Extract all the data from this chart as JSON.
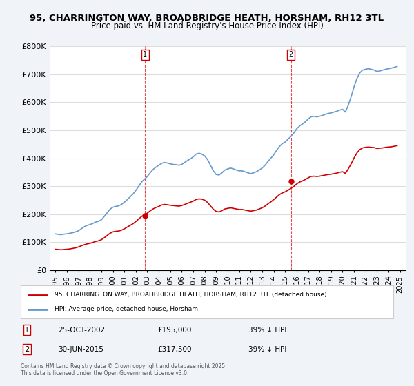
{
  "title": "95, CHARRINGTON WAY, BROADBRIDGE HEATH, HORSHAM, RH12 3TL",
  "subtitle": "Price paid vs. HM Land Registry's House Price Index (HPI)",
  "ylabel": "",
  "xlabel": "",
  "ylim": [
    0,
    800000
  ],
  "yticks": [
    0,
    100000,
    200000,
    300000,
    400000,
    500000,
    600000,
    700000,
    800000
  ],
  "ytick_labels": [
    "£0",
    "£100K",
    "£200K",
    "£300K",
    "£400K",
    "£500K",
    "£600K",
    "£700K",
    "£800K"
  ],
  "xlim": [
    1994.5,
    2025.5
  ],
  "background_color": "#f0f4f8",
  "plot_bg_color": "#ffffff",
  "grid_color": "#dddddd",
  "red_color": "#cc0000",
  "blue_color": "#6699cc",
  "sale1_x": 2002.81,
  "sale1_y": 195000,
  "sale2_x": 2015.5,
  "sale2_y": 317500,
  "legend_label_red": "95, CHARRINGTON WAY, BROADBRIDGE HEATH, HORSHAM, RH12 3TL (detached house)",
  "legend_label_blue": "HPI: Average price, detached house, Horsham",
  "annotation_rows": [
    {
      "num": "1",
      "date": "25-OCT-2002",
      "price": "£195,000",
      "hpi": "39% ↓ HPI"
    },
    {
      "num": "2",
      "date": "30-JUN-2015",
      "price": "£317,500",
      "hpi": "39% ↓ HPI"
    }
  ],
  "footer": "Contains HM Land Registry data © Crown copyright and database right 2025.\nThis data is licensed under the Open Government Licence v3.0.",
  "hpi_data": {
    "years": [
      1995,
      1995.25,
      1995.5,
      1995.75,
      1996,
      1996.25,
      1996.5,
      1996.75,
      1997,
      1997.25,
      1997.5,
      1997.75,
      1998,
      1998.25,
      1998.5,
      1998.75,
      1999,
      1999.25,
      1999.5,
      1999.75,
      2000,
      2000.25,
      2000.5,
      2000.75,
      2001,
      2001.25,
      2001.5,
      2001.75,
      2002,
      2002.25,
      2002.5,
      2002.75,
      2003,
      2003.25,
      2003.5,
      2003.75,
      2004,
      2004.25,
      2004.5,
      2004.75,
      2005,
      2005.25,
      2005.5,
      2005.75,
      2006,
      2006.25,
      2006.5,
      2006.75,
      2007,
      2007.25,
      2007.5,
      2007.75,
      2008,
      2008.25,
      2008.5,
      2008.75,
      2009,
      2009.25,
      2009.5,
      2009.75,
      2010,
      2010.25,
      2010.5,
      2010.75,
      2011,
      2011.25,
      2011.5,
      2011.75,
      2012,
      2012.25,
      2012.5,
      2012.75,
      2013,
      2013.25,
      2013.5,
      2013.75,
      2014,
      2014.25,
      2014.5,
      2014.75,
      2015,
      2015.25,
      2015.5,
      2015.75,
      2016,
      2016.25,
      2016.5,
      2016.75,
      2017,
      2017.25,
      2017.5,
      2017.75,
      2018,
      2018.25,
      2018.5,
      2018.75,
      2019,
      2019.25,
      2019.5,
      2019.75,
      2020,
      2020.25,
      2020.5,
      2020.75,
      2021,
      2021.25,
      2021.5,
      2021.75,
      2022,
      2022.25,
      2022.5,
      2022.75,
      2023,
      2023.25,
      2023.5,
      2023.75,
      2024,
      2024.25,
      2024.5,
      2024.75
    ],
    "values": [
      130000,
      128000,
      127000,
      129000,
      130000,
      132000,
      134000,
      137000,
      141000,
      148000,
      155000,
      160000,
      163000,
      167000,
      172000,
      175000,
      180000,
      192000,
      205000,
      218000,
      225000,
      228000,
      230000,
      235000,
      243000,
      252000,
      262000,
      272000,
      285000,
      300000,
      315000,
      325000,
      335000,
      348000,
      360000,
      368000,
      375000,
      382000,
      385000,
      383000,
      380000,
      378000,
      377000,
      375000,
      378000,
      385000,
      392000,
      398000,
      405000,
      415000,
      418000,
      415000,
      408000,
      395000,
      375000,
      355000,
      342000,
      340000,
      348000,
      358000,
      362000,
      365000,
      362000,
      358000,
      355000,
      355000,
      352000,
      348000,
      345000,
      348000,
      352000,
      358000,
      365000,
      375000,
      388000,
      400000,
      412000,
      428000,
      442000,
      452000,
      458000,
      468000,
      478000,
      490000,
      505000,
      515000,
      522000,
      530000,
      540000,
      548000,
      550000,
      548000,
      550000,
      553000,
      557000,
      560000,
      562000,
      565000,
      568000,
      572000,
      575000,
      565000,
      590000,
      620000,
      655000,
      685000,
      705000,
      715000,
      718000,
      720000,
      718000,
      715000,
      710000,
      712000,
      715000,
      718000,
      720000,
      722000,
      725000,
      728000
    ]
  },
  "red_data": {
    "years": [
      1995,
      1995.25,
      1995.5,
      1995.75,
      1996,
      1996.25,
      1996.5,
      1996.75,
      1997,
      1997.25,
      1997.5,
      1997.75,
      1998,
      1998.25,
      1998.5,
      1998.75,
      1999,
      1999.25,
      1999.5,
      1999.75,
      2000,
      2000.25,
      2000.5,
      2000.75,
      2001,
      2001.25,
      2001.5,
      2001.75,
      2002,
      2002.25,
      2002.5,
      2002.75,
      2003,
      2003.25,
      2003.5,
      2003.75,
      2004,
      2004.25,
      2004.5,
      2004.75,
      2005,
      2005.25,
      2005.5,
      2005.75,
      2006,
      2006.25,
      2006.5,
      2006.75,
      2007,
      2007.25,
      2007.5,
      2007.75,
      2008,
      2008.25,
      2008.5,
      2008.75,
      2009,
      2009.25,
      2009.5,
      2009.75,
      2010,
      2010.25,
      2010.5,
      2010.75,
      2011,
      2011.25,
      2011.5,
      2011.75,
      2012,
      2012.25,
      2012.5,
      2012.75,
      2013,
      2013.25,
      2013.5,
      2013.75,
      2014,
      2014.25,
      2014.5,
      2014.75,
      2015,
      2015.25,
      2015.5,
      2015.75,
      2016,
      2016.25,
      2016.5,
      2016.75,
      2017,
      2017.25,
      2017.5,
      2017.75,
      2018,
      2018.25,
      2018.5,
      2018.75,
      2019,
      2019.25,
      2019.5,
      2019.75,
      2020,
      2020.25,
      2020.5,
      2020.75,
      2021,
      2021.25,
      2021.5,
      2021.75,
      2022,
      2022.25,
      2022.5,
      2022.75,
      2023,
      2023.25,
      2023.5,
      2023.75,
      2024,
      2024.25,
      2024.5,
      2024.75
    ],
    "values": [
      75000,
      74000,
      73000,
      74000,
      75000,
      76000,
      78000,
      80000,
      83000,
      87000,
      91000,
      94000,
      96000,
      99000,
      103000,
      105000,
      109000,
      116000,
      124000,
      132000,
      137000,
      139000,
      140000,
      143000,
      148000,
      154000,
      160000,
      166000,
      174000,
      183000,
      192000,
      198000,
      204000,
      212000,
      219000,
      224000,
      228000,
      233000,
      235000,
      234000,
      232000,
      231000,
      230000,
      229000,
      231000,
      235000,
      239000,
      243000,
      247000,
      253000,
      255000,
      254000,
      250000,
      242000,
      230000,
      218000,
      210000,
      208000,
      213000,
      219000,
      221000,
      223000,
      221000,
      219000,
      217000,
      217000,
      215000,
      213000,
      211000,
      213000,
      215000,
      219000,
      223000,
      229000,
      237000,
      244000,
      252000,
      261000,
      270000,
      276000,
      280000,
      286000,
      292000,
      299000,
      308000,
      315000,
      319000,
      324000,
      330000,
      335000,
      336000,
      335000,
      336000,
      338000,
      340000,
      342000,
      343000,
      345000,
      347000,
      350000,
      352000,
      346000,
      362000,
      380000,
      401000,
      419000,
      431000,
      437000,
      439000,
      440000,
      439000,
      438000,
      435000,
      436000,
      437000,
      439000,
      440000,
      441000,
      443000,
      445000
    ]
  }
}
